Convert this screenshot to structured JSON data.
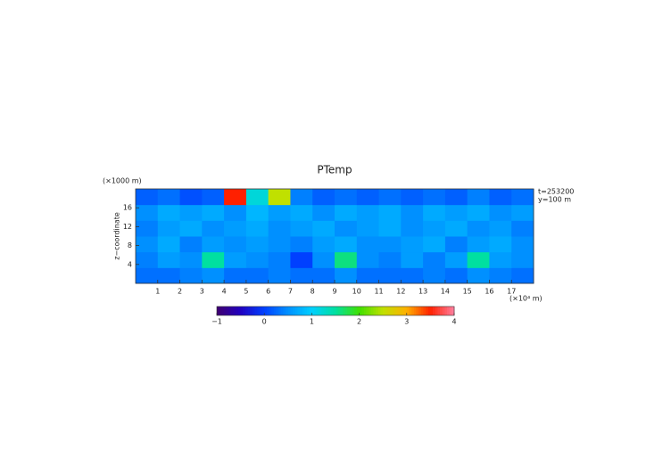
{
  "chart_data": {
    "type": "heatmap",
    "title": "PTemp",
    "y_unit_label": "(×1000 m)",
    "ylabel": "z−coordinate",
    "x_unit_label": "(×10⁴ m)",
    "annotations": [
      "t=253200",
      "y=100 m"
    ],
    "xlim": [
      0,
      18
    ],
    "ylim": [
      0,
      20
    ],
    "xticks": [
      1,
      2,
      3,
      4,
      5,
      6,
      7,
      8,
      9,
      10,
      11,
      12,
      13,
      14,
      15,
      16,
      17
    ],
    "yticks": [
      4,
      8,
      12,
      16
    ],
    "clim": [
      -1,
      4
    ],
    "cticks": [
      {
        "value": -1,
        "label": "−1"
      },
      0,
      1,
      2,
      3,
      4
    ],
    "colorscale": [
      "#400070",
      "#2000c0",
      "#0040ff",
      "#0090ff",
      "#00d0ff",
      "#00e0a0",
      "#40e000",
      "#c0e000",
      "#ffb000",
      "#ff2000",
      "#ff80a0"
    ],
    "z": [
      [
        0.3,
        0.3,
        0.4,
        0.5,
        0.3,
        0.3,
        0.4,
        0.3,
        0.3,
        0.5,
        0.3,
        0.3,
        0.3,
        0.4,
        0.3,
        0.5,
        0.4,
        0.3
      ],
      [
        0.4,
        0.6,
        0.5,
        1.5,
        0.6,
        0.5,
        0.4,
        0.0,
        0.5,
        1.6,
        0.5,
        0.4,
        0.6,
        0.4,
        0.6,
        1.5,
        0.6,
        0.5
      ],
      [
        0.5,
        0.7,
        0.4,
        0.6,
        0.5,
        0.6,
        0.5,
        0.4,
        0.6,
        0.7,
        0.5,
        0.5,
        0.6,
        0.7,
        0.4,
        0.6,
        0.7,
        0.5
      ],
      [
        0.4,
        0.6,
        0.7,
        0.5,
        0.6,
        0.7,
        0.5,
        0.6,
        0.7,
        0.5,
        0.6,
        0.7,
        0.5,
        0.6,
        0.7,
        0.5,
        0.6,
        0.4
      ],
      [
        0.5,
        0.7,
        0.6,
        0.7,
        0.5,
        0.8,
        0.6,
        0.7,
        0.5,
        0.7,
        0.6,
        0.7,
        0.5,
        0.7,
        0.6,
        0.7,
        0.5,
        0.6
      ],
      [
        0.2,
        0.3,
        0.1,
        0.2,
        3.5,
        1.2,
        2.5,
        0.4,
        0.2,
        0.3,
        0.2,
        0.3,
        0.2,
        0.3,
        0.2,
        0.4,
        0.2,
        0.3
      ]
    ]
  }
}
